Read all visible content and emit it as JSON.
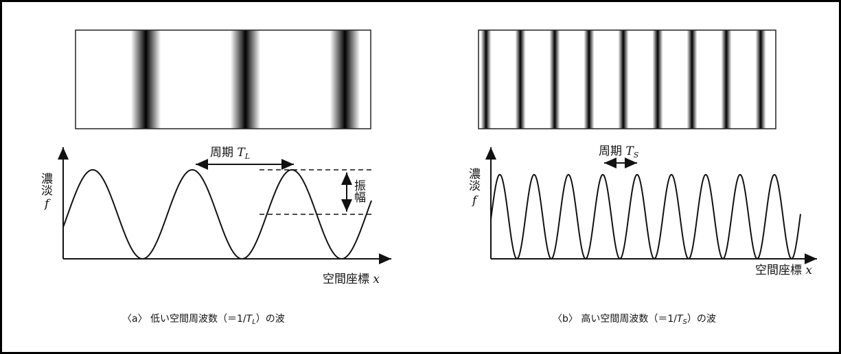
{
  "panels": [
    {
      "period_label": "周期",
      "period_symbol": "T",
      "period_subscript": "L",
      "y_label": "濃淡",
      "y_symbol": "f",
      "amplitude_label": "振幅",
      "x_label": "空間座標",
      "x_symbol": "x",
      "caption": {
        "prefix": "〈a〉 低い空間周波数（＝1/",
        "symbol": "T",
        "subscript": "L",
        "suffix": "）の波"
      }
    },
    {
      "period_label": "周期",
      "period_symbol": "T",
      "period_subscript": "S",
      "y_label": "濃淡",
      "y_symbol": "f",
      "x_label": "空間座標",
      "x_symbol": "x",
      "caption": {
        "prefix": "〈b〉 高い空間周波数（＝1/",
        "symbol": "T",
        "subscript": "S",
        "suffix": "）の波"
      }
    }
  ]
}
